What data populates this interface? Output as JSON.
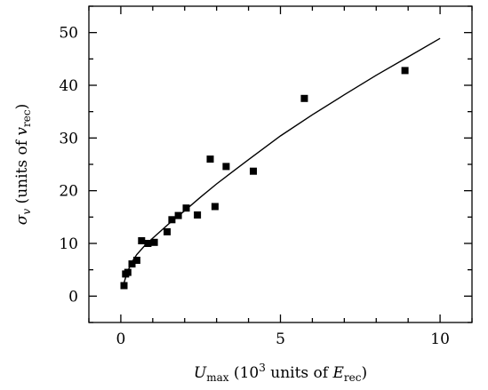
{
  "chart_data": {
    "type": "scatter",
    "xlabel": {
      "sym": "U",
      "sub": "max",
      "rest1": " (10",
      "exp": "3",
      "rest2": " units of ",
      "sym2": "E",
      "sub2": "rec",
      "rest3": ")"
    },
    "ylabel": {
      "sym": "σ",
      "sub": "v",
      "rest1": " (units of ",
      "sym2": "v",
      "sub2": "rec",
      "rest2": ")"
    },
    "xlim": [
      -1,
      11
    ],
    "ylim": [
      -5,
      55
    ],
    "xticks_major": [
      0,
      5,
      10
    ],
    "xticks_minor": [
      -1,
      1,
      2,
      3,
      4,
      6,
      7,
      8,
      9,
      11
    ],
    "yticks_major": [
      0,
      10,
      20,
      30,
      40,
      50
    ],
    "yticks_minor": [
      -5,
      5,
      15,
      25,
      35,
      45,
      55
    ],
    "grid": false,
    "series": [
      {
        "marker": "square",
        "color": "#000000",
        "x": [
          0.1,
          0.15,
          0.22,
          0.35,
          0.5,
          0.65,
          0.85,
          1.05,
          1.45,
          1.6,
          1.8,
          2.05,
          2.4,
          2.8,
          2.95,
          3.3,
          4.15,
          5.75,
          8.9
        ],
        "y": [
          2.0,
          4.2,
          4.5,
          6.1,
          6.8,
          10.5,
          10.0,
          10.2,
          12.2,
          14.5,
          15.3,
          16.7,
          15.4,
          26.0,
          17.0,
          24.6,
          23.7,
          37.5,
          42.8
        ]
      }
    ],
    "fit": {
      "type": "line",
      "color": "#000000",
      "x": [
        0.1,
        0.2,
        0.35,
        0.5,
        0.75,
        1.0,
        1.5,
        2.0,
        2.5,
        3.0,
        3.5,
        4.0,
        5.0,
        6.0,
        7.0,
        8.0,
        9.0,
        10.0
      ],
      "y": [
        2.5,
        4.5,
        6.5,
        7.9,
        9.6,
        11.0,
        13.7,
        16.2,
        18.8,
        21.3,
        23.6,
        25.9,
        30.4,
        34.4,
        38.2,
        41.9,
        45.4,
        48.9
      ]
    }
  }
}
